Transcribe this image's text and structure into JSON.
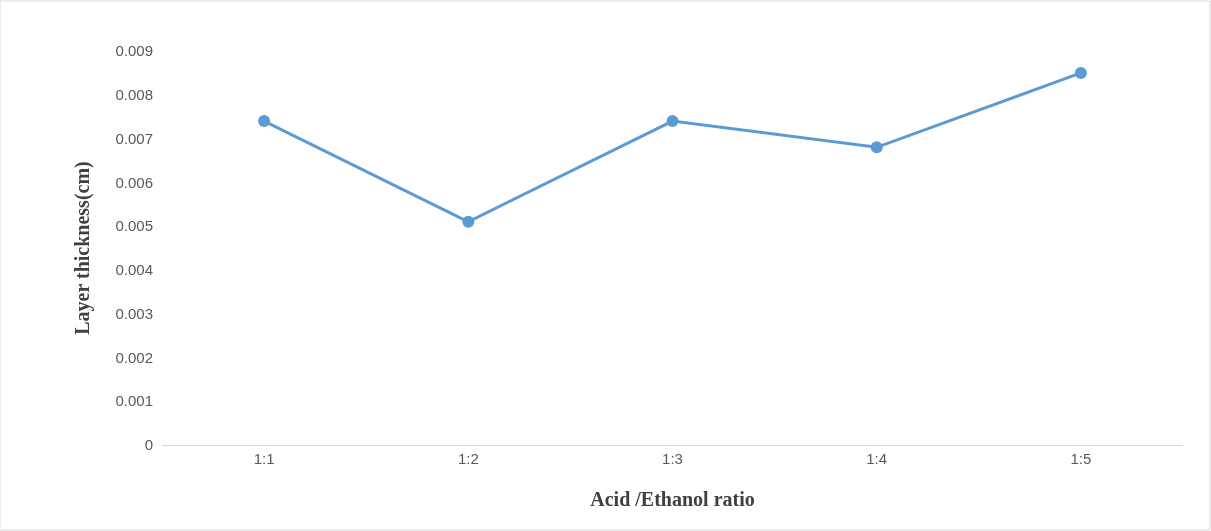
{
  "chart_data": {
    "type": "line",
    "xlabel": "Acid /Ethanol ratio",
    "ylabel": "Layer thickness(cm)",
    "categories": [
      "1:1",
      "1:2",
      "1:3",
      "1:4",
      "1:5"
    ],
    "series": [
      {
        "color": "#5b9bd5",
        "values": [
          0.0074,
          0.0051,
          0.0074,
          0.0068,
          0.0085
        ]
      }
    ],
    "ylim": [
      0,
      0.009
    ],
    "yticks": [
      0,
      0.001,
      0.002,
      0.003,
      0.004,
      0.005,
      0.006,
      0.007,
      0.008,
      0.009
    ],
    "marker": "circle",
    "line_style": "solid"
  }
}
